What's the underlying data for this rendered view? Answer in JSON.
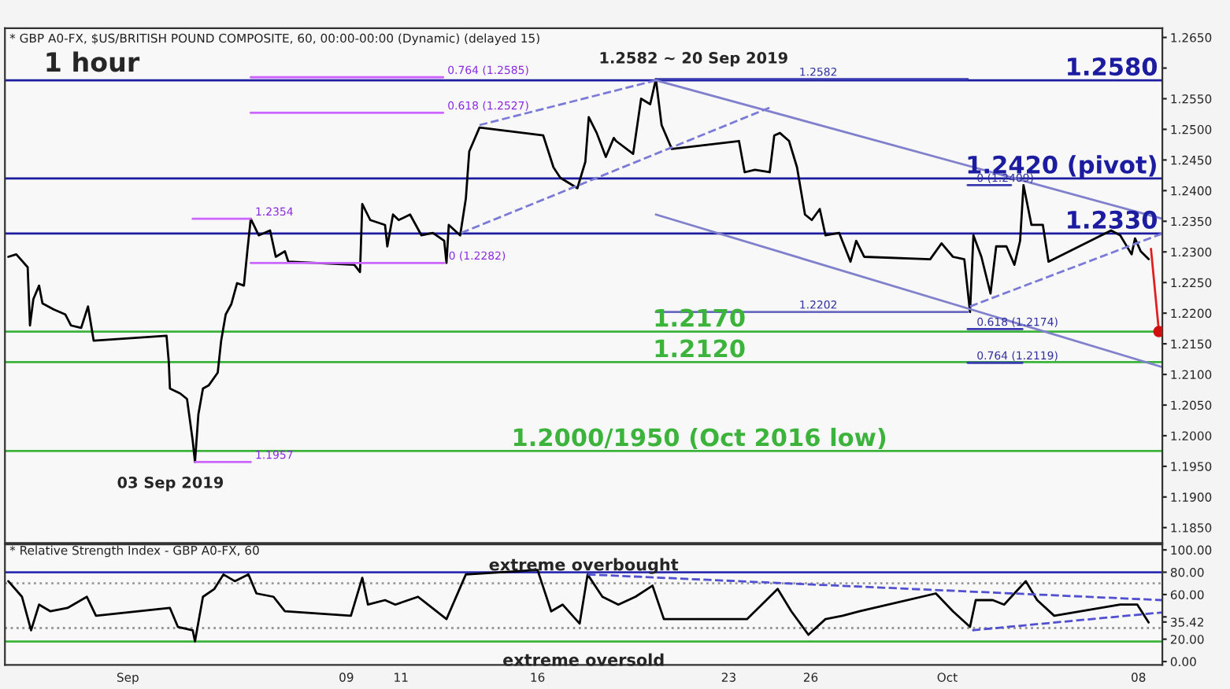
{
  "chart_data": [
    {
      "type": "line",
      "title": "* GBP A0-FX, $US/BRITISH POUND COMPOSITE, 60, 00:00-00:00 (Dynamic) (delayed 15)",
      "annotations": [
        "1 hour",
        "1.2582 ~ 20 Sep 2019",
        "03 Sep 2019",
        {
          "text": "0.764 (1.2585)",
          "x": "2019-09-12T13:00",
          "y": 1.2585
        },
        {
          "text": "0.618 (1.2527)",
          "x": "2019-09-12T13:00",
          "y": 1.2527
        },
        {
          "text": "1.2354",
          "x": "2019-09-05T12:00",
          "y": 1.2354
        },
        {
          "text": "0 (1.2282)",
          "x": "2019-09-12T14:00",
          "y": 1.2282
        },
        {
          "text": "1.1957",
          "x": "2019-09-05T12:00",
          "y": 1.1957
        },
        {
          "text": "1.2582",
          "x": "2019-09-25T10:00",
          "y": 1.2582
        },
        {
          "text": "1.2202",
          "x": "2019-09-25T10:00",
          "y": 1.2202
        },
        {
          "text": "0 (1.2409)",
          "x": "2019-10-01T22:00",
          "y": 1.2409
        },
        {
          "text": "0.618 (1.2174)",
          "x": "2019-10-01T22:00",
          "y": 1.2174
        },
        {
          "text": "0.764 (1.2119)",
          "x": "2019-10-01T22:00",
          "y": 1.2119
        }
      ],
      "series": [
        {
          "color": "#000000",
          "x": [
            "2019-08-27T15:00",
            "2019-08-27T22:00",
            "2019-08-28T08:00",
            "2019-08-28T10:00",
            "2019-08-28T13:00",
            "2019-08-28T18:00",
            "2019-08-28T21:00",
            "2019-08-29T07:00",
            "2019-08-29T17:00",
            "2019-08-29T22:00",
            "2019-08-30T07:00",
            "2019-08-30T13:00",
            "2019-08-30T18:00",
            "2019-09-02T10:00",
            "2019-09-02T12:00",
            "2019-09-02T13:00",
            "2019-09-02T22:00",
            "2019-09-03T04:00",
            "2019-09-03T09:00",
            "2019-09-03T11:00",
            "2019-09-03T14:00",
            "2019-09-03T18:00",
            "2019-09-03T23:00",
            "2019-09-04T07:00",
            "2019-09-04T10:00",
            "2019-09-04T14:00",
            "2019-09-04T19:00",
            "2019-09-05T00:00",
            "2019-09-05T06:00",
            "2019-09-05T09:00",
            "2019-09-05T12:00",
            "2019-09-05T19:00",
            "2019-09-06T05:00",
            "2019-09-06T10:00",
            "2019-09-06T18:00",
            "2019-09-06T21:00",
            "2019-09-09T07:00",
            "2019-09-09T12:00",
            "2019-09-09T14:00",
            "2019-09-09T21:00",
            "2019-09-10T10:00",
            "2019-09-10T12:00",
            "2019-09-10T17:00",
            "2019-09-10T22:00",
            "2019-09-11T08:00",
            "2019-09-11T18:00",
            "2019-09-12T04:00",
            "2019-09-12T14:00",
            "2019-09-12T16:00",
            "2019-09-12T18:00",
            "2019-09-13T04:00",
            "2019-09-13T09:00",
            "2019-09-13T12:00",
            "2019-09-13T21:00",
            "2019-09-16T05:00",
            "2019-09-16T14:00",
            "2019-09-16T20:00",
            "2019-09-17T11:00",
            "2019-09-17T18:00",
            "2019-09-17T21:00",
            "2019-09-18T04:00",
            "2019-09-18T12:00",
            "2019-09-18T19:00",
            "2019-09-18T21:00",
            "2019-09-19T12:00",
            "2019-09-19T19:00",
            "2019-09-20T03:00",
            "2019-09-20T08:00",
            "2019-09-20T13:00",
            "2019-09-20T22:00",
            "2019-09-23T09:00",
            "2019-09-23T14:00",
            "2019-09-23T23:00",
            "2019-09-24T12:00",
            "2019-09-24T16:00",
            "2019-09-24T21:00",
            "2019-09-25T05:00",
            "2019-09-25T12:00",
            "2019-09-25T19:00",
            "2019-09-26T01:00",
            "2019-09-26T08:00",
            "2019-09-26T13:00",
            "2019-09-27T01:00",
            "2019-09-27T11:00",
            "2019-09-27T16:00",
            "2019-09-27T23:00",
            "2019-09-30T09:00",
            "2019-09-30T19:00",
            "2019-10-01T05:00",
            "2019-10-01T15:00",
            "2019-10-01T20:00",
            "2019-10-01T23:00",
            "2019-10-02T06:00",
            "2019-10-02T14:00",
            "2019-10-02T19:00",
            "2019-10-03T04:00",
            "2019-10-03T11:00",
            "2019-10-03T16:00",
            "2019-10-03T19:00",
            "2019-10-04T02:00",
            "2019-10-04T12:00",
            "2019-10-04T17:00",
            "2019-10-07T00:00",
            "2019-10-07T08:00",
            "2019-10-07T18:00",
            "2019-10-07T21:00",
            "2019-10-08T02:00",
            "2019-10-08T09:00"
          ],
          "values": [
            1.2292,
            1.2296,
            1.2275,
            1.218,
            1.2223,
            1.2245,
            1.2216,
            1.2206,
            1.2198,
            1.218,
            1.2176,
            1.2211,
            1.2155,
            1.2163,
            1.212,
            1.2077,
            1.2069,
            1.206,
            1.1992,
            1.1957,
            1.2035,
            1.2077,
            1.2082,
            1.2103,
            1.2155,
            1.2198,
            1.2215,
            1.2249,
            1.2245,
            1.2301,
            1.2354,
            1.2327,
            1.2335,
            1.2292,
            1.2301,
            1.2284,
            1.2279,
            1.2267,
            1.2378,
            1.2352,
            1.2344,
            1.2309,
            1.2361,
            1.2352,
            1.2361,
            1.2327,
            1.2331,
            1.2318,
            1.2282,
            1.2344,
            1.2327,
            1.2387,
            1.2464,
            1.2503,
            1.249,
            1.2438,
            1.2421,
            1.2404,
            1.2447,
            1.252,
            1.2494,
            1.2455,
            1.2486,
            1.2481,
            1.246,
            1.255,
            1.2541,
            1.2582,
            1.2507,
            1.2468,
            1.2481,
            1.243,
            1.2434,
            1.243,
            1.249,
            1.2494,
            1.2481,
            1.2438,
            1.2361,
            1.2352,
            1.237,
            1.2327,
            1.2331,
            1.2284,
            1.2318,
            1.2292,
            1.2288,
            1.2314,
            1.2292,
            1.2288,
            1.2202,
            1.2327,
            1.2292,
            1.2232,
            1.2309,
            1.2309,
            1.2279,
            1.2318,
            1.2409,
            1.2344,
            1.2344,
            1.2284,
            1.2335,
            1.2327,
            1.2296,
            1.2322,
            1.2301,
            1.2288
          ]
        },
        {
          "color": "#cc66ff",
          "x": [
            "2019-09-05T12:00",
            "2019-09-12T13:00"
          ],
          "values": [
            1.2585,
            1.2585
          ]
        },
        {
          "color": "#cc66ff",
          "x": [
            "2019-09-05T12:00",
            "2019-09-12T13:00"
          ],
          "values": [
            1.2527,
            1.2527
          ]
        },
        {
          "color": "#cc66ff",
          "x": [
            "2019-09-03T09:00",
            "2019-09-05T12:00"
          ],
          "values": [
            1.2354,
            1.2354
          ]
        },
        {
          "color": "#cc66ff",
          "x": [
            "2019-09-05T12:00",
            "2019-09-12T14:00"
          ],
          "values": [
            1.2282,
            1.2282
          ]
        },
        {
          "color": "#cc66ff",
          "x": [
            "2019-09-03T11:00",
            "2019-09-05T12:00"
          ],
          "values": [
            1.1957,
            1.1957
          ]
        },
        {
          "color": "#3a3ab0",
          "x": [
            "2019-09-20T08:00",
            "2019-10-01T18:00"
          ],
          "values": [
            1.2582,
            1.2582
          ]
        },
        {
          "color": "#6a6ac0",
          "x": [
            "2019-09-20T08:00",
            "2019-10-01T18:00"
          ],
          "values": [
            1.2202,
            1.2202
          ]
        },
        {
          "color": "#3a3ab0",
          "x": [
            "2019-10-01T18:00",
            "2019-10-03T08:00"
          ],
          "values": [
            1.2409,
            1.2409
          ]
        },
        {
          "color": "#3a3ab0",
          "x": [
            "2019-10-01T18:00",
            "2019-10-03T18:00"
          ],
          "values": [
            1.2174,
            1.2174
          ]
        },
        {
          "color": "#3a3ab0",
          "x": [
            "2019-10-01T18:00",
            "2019-10-03T18:00"
          ],
          "values": [
            1.2119,
            1.2119
          ]
        },
        {
          "color": "#8080cc",
          "x": [
            "2019-09-20T08:00",
            "2019-10-08T21:00"
          ],
          "values": [
            1.258,
            1.2354
          ]
        },
        {
          "color": "#8080cc",
          "x": [
            "2019-09-20T08:00",
            "2019-10-08T21:00"
          ],
          "values": [
            1.2361,
            1.2112
          ]
        },
        {
          "color": "#7a7ad8",
          "line_style": "dashed",
          "x": [
            "2019-09-13T21:00",
            "2019-09-20T08:00"
          ],
          "values": [
            1.2507,
            1.258
          ]
        },
        {
          "color": "#7a7ad8",
          "line_style": "dashed",
          "x": [
            "2019-09-13T05:00",
            "2019-09-24T14:00"
          ],
          "values": [
            1.2331,
            1.2537
          ]
        },
        {
          "color": "#7a7ad8",
          "line_style": "dashed",
          "x": [
            "2019-10-01T20:00",
            "2019-10-08T21:00"
          ],
          "values": [
            1.2211,
            1.233
          ]
        },
        {
          "color": "#e02020",
          "x": [
            "2019-10-08T11:00",
            "2019-10-08T18:00"
          ],
          "values": [
            1.2305,
            1.217
          ]
        },
        {
          "type": "scatter",
          "color": "#d01010",
          "x": [
            "2019-10-08T18:00"
          ],
          "values": [
            1.217
          ]
        }
      ],
      "ref_lines": [
        {
          "axis": "y",
          "value": 1.258,
          "label": "1.2580",
          "color": "#1c1ca0"
        },
        {
          "axis": "y",
          "value": 1.242,
          "label": "1.2420 (pivot)",
          "color": "#1c1ca0"
        },
        {
          "axis": "y",
          "value": 1.233,
          "label": "1.2330",
          "color": "#1c1ca0"
        },
        {
          "axis": "y",
          "value": 1.217,
          "label": "1.2170",
          "color": "#3cb43c"
        },
        {
          "axis": "y",
          "value": 1.212,
          "label": "1.2120",
          "color": "#3cb43c"
        },
        {
          "axis": "y",
          "value": 1.1975,
          "label": "1.2000/1950 (Oct 2016 low)",
          "color": "#3cb43c"
        }
      ],
      "xlim": [
        "2019-08-27T12:00",
        "2019-10-08T21:00"
      ],
      "xticks": [
        {
          "value": "2019-09",
          "label": null
        },
        {
          "value": "2019-09-09",
          "label": null
        },
        {
          "value": "2019-09-11",
          "label": null
        },
        {
          "value": "2019-09-16",
          "label": null
        },
        {
          "value": "2019-09-23",
          "label": null
        },
        {
          "value": "2019-09-26",
          "label": null
        },
        {
          "value": "2019-10",
          "label": null
        },
        {
          "value": "2019-10-08",
          "label": null
        }
      ],
      "ylim": [
        1.1825,
        1.2665
      ],
      "yticks": [
        {
          "value": 1.185,
          "label": "1.1850"
        },
        {
          "value": 1.19,
          "label": "1.1900"
        },
        {
          "value": 1.195,
          "label": "1.1950"
        },
        {
          "value": 1.2,
          "label": "1.2000"
        },
        {
          "value": 1.205,
          "label": "1.2050"
        },
        {
          "value": 1.21,
          "label": "1.2100"
        },
        {
          "value": 1.215,
          "label": "1.2150"
        },
        {
          "value": 1.22,
          "label": "1.2200"
        },
        {
          "value": 1.225,
          "label": "1.2250"
        },
        {
          "value": 1.23,
          "label": "1.2300"
        },
        {
          "value": 1.235,
          "label": "1.2350"
        },
        {
          "value": 1.24,
          "label": "1.2400"
        },
        {
          "value": 1.245,
          "label": "1.2450"
        },
        {
          "value": 1.25,
          "label": "1.2500"
        },
        {
          "value": 1.255,
          "label": "1.2550"
        },
        {
          "value": 1.26,
          "label": null
        },
        {
          "value": 1.265,
          "label": "1.2650"
        }
      ],
      "tick_labels": "y"
    },
    {
      "type": "line",
      "title": "* Relative Strength Index - GBP A0-FX, 60",
      "annotations": [
        "extreme overbought",
        "extreme oversold"
      ],
      "series": [
        {
          "color": "#000000",
          "x": [
            "2019-08-27T15:00",
            "2019-08-28T03:00",
            "2019-08-28T11:00",
            "2019-08-28T18:00",
            "2019-08-29T04:00",
            "2019-08-29T19:00",
            "2019-08-30T12:00",
            "2019-08-30T20:00",
            "2019-09-02T13:00",
            "2019-09-02T20:00",
            "2019-09-03T09:00",
            "2019-09-03T11:00",
            "2019-09-03T18:00",
            "2019-09-04T04:00",
            "2019-09-04T12:00",
            "2019-09-04T22:00",
            "2019-09-05T10:00",
            "2019-09-05T17:00",
            "2019-09-06T08:00",
            "2019-09-06T18:00",
            "2019-09-09T04:00",
            "2019-09-09T14:00",
            "2019-09-09T19:00",
            "2019-09-10T10:00",
            "2019-09-10T19:00",
            "2019-09-11T15:00",
            "2019-09-12T16:00",
            "2019-09-13T09:00",
            "2019-09-16T00:00",
            "2019-09-16T12:00",
            "2019-09-16T22:00",
            "2019-09-17T13:00",
            "2019-09-17T20:00",
            "2019-09-18T09:00",
            "2019-09-18T23:00",
            "2019-09-19T14:00",
            "2019-09-20T05:00",
            "2019-09-20T15:00",
            "2019-09-23T16:00",
            "2019-09-24T19:00",
            "2019-09-25T07:00",
            "2019-09-25T22:00",
            "2019-09-26T13:00",
            "2019-09-27T04:00",
            "2019-09-27T19:00",
            "2019-09-30T14:00",
            "2019-10-01T05:00",
            "2019-10-01T20:00",
            "2019-10-02T01:00",
            "2019-10-02T16:00",
            "2019-10-03T02:00",
            "2019-10-03T11:00",
            "2019-10-03T21:00",
            "2019-10-04T07:00",
            "2019-10-04T22:00",
            "2019-10-07T08:00",
            "2019-10-07T23:00",
            "2019-10-08T09:00"
          ],
          "values": [
            72,
            58,
            28,
            51,
            45,
            48,
            58,
            41,
            48,
            31,
            28,
            18,
            58,
            65,
            78,
            72,
            78,
            61,
            58,
            45,
            41,
            75,
            51,
            55,
            51,
            58,
            38,
            78,
            82,
            45,
            51,
            34,
            78,
            58,
            51,
            58,
            68,
            38,
            38,
            65,
            45,
            24,
            38,
            41,
            45,
            61,
            45,
            31,
            55,
            55,
            51,
            61,
            72,
            55,
            41,
            51,
            51,
            35
          ]
        },
        {
          "color": "#5050d0",
          "line_style": "dashed",
          "x": [
            "2019-09-17T20:00",
            "2019-10-08T21:00"
          ],
          "values": [
            78,
            55
          ]
        },
        {
          "color": "#5050d0",
          "line_style": "dashed",
          "x": [
            "2019-10-01T22:00",
            "2019-10-08T21:00"
          ],
          "values": [
            28,
            44
          ]
        }
      ],
      "ref_lines": [
        {
          "axis": "y",
          "value": 80,
          "color": "#2e2eb0"
        },
        {
          "axis": "y",
          "value": 18,
          "color": "#3cb43c"
        },
        {
          "axis": "y",
          "value": 70,
          "color": "#999999",
          "line_style": "dotted"
        },
        {
          "axis": "y",
          "value": 30,
          "color": "#999999",
          "line_style": "dotted"
        }
      ],
      "xlim": [
        "2019-08-27T12:00",
        "2019-10-08T21:00"
      ],
      "xticks": [
        {
          "value": "2019-09",
          "label": "Sep"
        },
        {
          "value": "2019-09-09",
          "label": "09"
        },
        {
          "value": "2019-09-11",
          "label": "11"
        },
        {
          "value": "2019-09-16",
          "label": "16"
        },
        {
          "value": "2019-09-23",
          "label": "23"
        },
        {
          "value": "2019-09-26",
          "label": "26"
        },
        {
          "value": "2019-10",
          "label": "Oct"
        },
        {
          "value": "2019-10-08",
          "label": "08"
        }
      ],
      "ylim": [
        -3,
        105
      ],
      "yticks": [
        {
          "value": 0,
          "label": "0.00"
        },
        {
          "value": 20,
          "label": "20.00"
        },
        {
          "value": 35.42,
          "label": "35.42"
        },
        {
          "value": 40,
          "label": null
        },
        {
          "value": 60,
          "label": "60.00"
        },
        {
          "value": 80,
          "label": "80.00"
        },
        {
          "value": 100,
          "label": "100.00"
        }
      ]
    }
  ]
}
